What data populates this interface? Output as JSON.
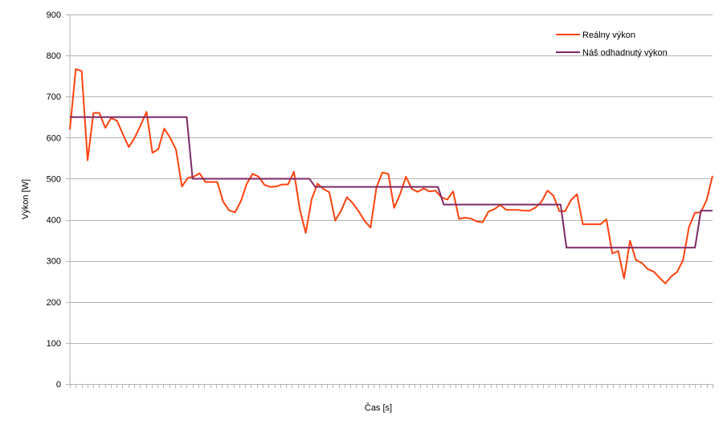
{
  "chart_data": {
    "type": "line",
    "title": "",
    "xlabel": "Čas [s]",
    "ylabel": "Výkon [W]",
    "ylim": [
      0,
      900
    ],
    "yticks": [
      0,
      100,
      200,
      300,
      400,
      500,
      600,
      700,
      800,
      900
    ],
    "x_tick_count": 110,
    "grid": true,
    "legend_position": "top-right",
    "series": [
      {
        "name": "Reálny výkon",
        "color": "#ff420e",
        "values": [
          620,
          767,
          762,
          545,
          660,
          660,
          624,
          648,
          641,
          608,
          577,
          600,
          630,
          663,
          563,
          572,
          622,
          600,
          571,
          481,
          502,
          505,
          513,
          492,
          492,
          492,
          444,
          423,
          418,
          445,
          488,
          512,
          505,
          485,
          480,
          481,
          486,
          486,
          517,
          425,
          368,
          450,
          488,
          475,
          467,
          398,
          422,
          455,
          440,
          420,
          397,
          381,
          479,
          515,
          512,
          429,
          462,
          505,
          475,
          468,
          476,
          469,
          471,
          455,
          449,
          469,
          402,
          405,
          403,
          396,
          394,
          420,
          426,
          436,
          424,
          424,
          424,
          422,
          422,
          430,
          444,
          471,
          459,
          421,
          421,
          448,
          462,
          389,
          389,
          389,
          389,
          401,
          318,
          324,
          257,
          349,
          302,
          295,
          280,
          274,
          259,
          245,
          262,
          273,
          302,
          382,
          417,
          418,
          448,
          507
        ]
      },
      {
        "name": "Náš odhadnutý výkon",
        "color": "#7e2a66",
        "values": [
          650,
          650,
          650,
          650,
          650,
          650,
          650,
          650,
          650,
          650,
          650,
          650,
          650,
          650,
          650,
          650,
          650,
          650,
          650,
          650,
          650,
          500,
          500,
          500,
          500,
          500,
          500,
          500,
          500,
          500,
          500,
          500,
          500,
          500,
          500,
          500,
          500,
          500,
          500,
          500,
          500,
          500,
          480,
          480,
          480,
          480,
          480,
          480,
          480,
          480,
          480,
          480,
          480,
          480,
          480,
          480,
          480,
          480,
          480,
          480,
          480,
          480,
          480,
          480,
          437,
          437,
          437,
          437,
          437,
          437,
          437,
          437,
          437,
          437,
          437,
          437,
          437,
          437,
          437,
          437,
          437,
          437,
          437,
          437,
          437,
          332,
          332,
          332,
          332,
          332,
          332,
          332,
          332,
          332,
          332,
          332,
          332,
          332,
          332,
          332,
          332,
          332,
          332,
          332,
          332,
          332,
          332,
          332,
          422,
          422,
          422
        ]
      }
    ]
  }
}
